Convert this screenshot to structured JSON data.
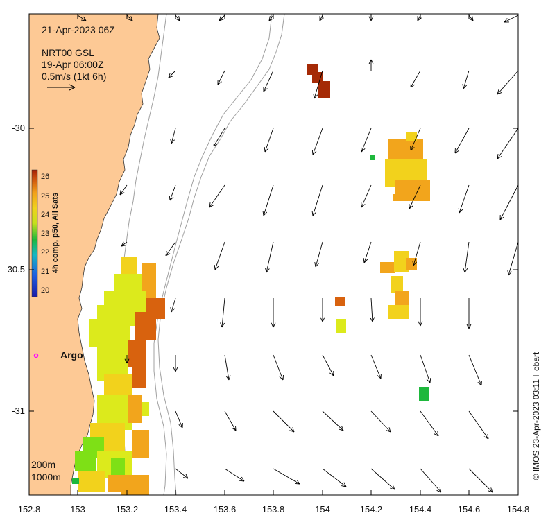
{
  "header": {
    "date": "21-Apr-2023 06Z",
    "product": "NRT00 GSL",
    "product_time": "19-Apr 06:00Z",
    "vector_scale": "0.5m/s (1kt 6h)"
  },
  "axes": {
    "x_ticks": [
      "152.8",
      "153",
      "153.2",
      "153.4",
      "153.6",
      "153.8",
      "154",
      "154.2",
      "154.4",
      "154.6",
      "154.8"
    ],
    "y_ticks": [
      "-30",
      "-30.5",
      "-31"
    ]
  },
  "colorbar": {
    "title": "4h comp, p50, All Sats",
    "labels": [
      "26",
      "25",
      "24",
      "23",
      "22",
      "21",
      "20"
    ],
    "min": 20,
    "max": 26
  },
  "depth_contours": {
    "shallow": "200m",
    "deep": "1000m"
  },
  "argo": {
    "label": "Argo",
    "color": "#ff00ff"
  },
  "credit": "© IMOS 23-Apr-2023 03:11 Hobart",
  "colors": {
    "land": "#fdc995",
    "contour": "#a0a0a0",
    "arrow": "#000000"
  }
}
